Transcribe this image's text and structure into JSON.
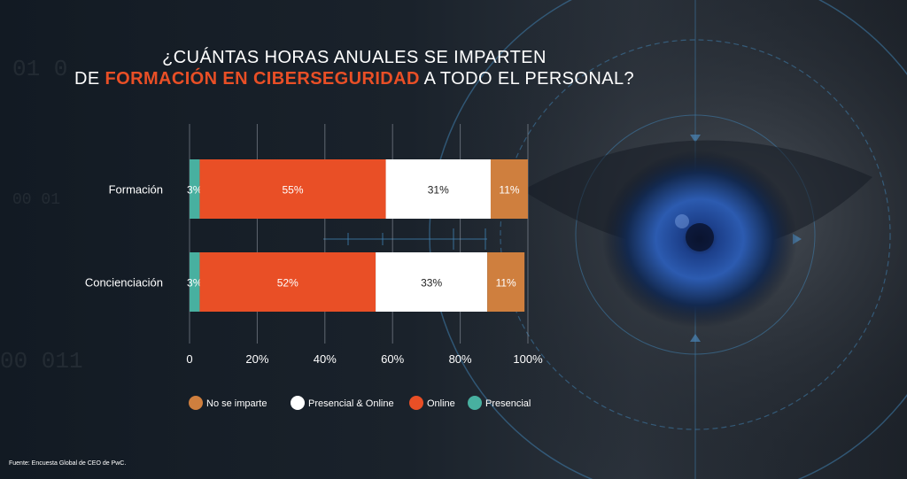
{
  "title": {
    "line1": "¿CUÁNTAS HORAS ANUALES SE IMPARTEN",
    "line2_prefix": "DE ",
    "line2_highlight": "FORMACIÓN EN CIBERSEGURIDAD",
    "line2_suffix": " A TODO EL PERSONAL?"
  },
  "source": "Fuente: Encuesta Global de CEO de PwC.",
  "colors": {
    "Presencial": "#48b0a0",
    "Online": "#e94f26",
    "Presencial & Online": "#ffffff",
    "No se imparte": "#cf7f3e",
    "title_highlight": "#e94f26"
  },
  "background_digits": [
    "01 0",
    "00 01",
    "00 011"
  ],
  "chart_data": {
    "type": "bar",
    "orientation": "horizontal",
    "stacked": true,
    "categories": [
      "Formación",
      "Concienciación"
    ],
    "series": [
      {
        "name": "Presencial",
        "values": [
          3,
          3
        ]
      },
      {
        "name": "Online",
        "values": [
          55,
          52
        ]
      },
      {
        "name": "Presencial & Online",
        "values": [
          31,
          33
        ]
      },
      {
        "name": "No se imparte",
        "values": [
          11,
          11
        ]
      }
    ],
    "xlim": [
      0,
      100
    ],
    "xticks": [
      "0",
      "20%",
      "40%",
      "60%",
      "80%",
      "100%"
    ],
    "data_labels": [
      [
        "3%",
        "55%",
        "31%",
        "11%"
      ],
      [
        "3%",
        "52%",
        "33%",
        "11%"
      ]
    ],
    "legend": [
      "No se imparte",
      "Presencial & Online",
      "Online",
      "Presencial"
    ],
    "legend_position": "bottom",
    "grid": true
  }
}
